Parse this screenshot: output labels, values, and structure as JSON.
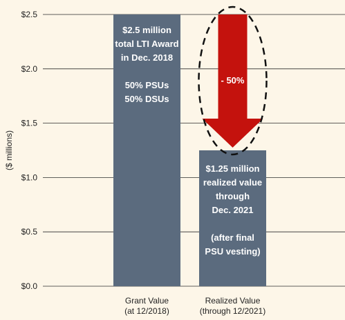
{
  "chart_data": {
    "type": "bar",
    "ylabel": "($ millions)",
    "ylim": [
      0,
      2.5
    ],
    "yticks": [
      0,
      0.5,
      1.0,
      1.5,
      2.0,
      2.5
    ],
    "ytick_labels": [
      "$0.0",
      "$0.5",
      "$1.0",
      "$1.5",
      "$2.0",
      "$2.5"
    ],
    "grid": true,
    "categories": [
      [
        "Grant Value",
        "(at 12/2018)"
      ],
      [
        "Realized Value",
        "(through 12/2021)"
      ]
    ],
    "values": [
      2.5,
      1.25
    ],
    "bar_color": "#5b6b7e",
    "bar_annotations": [
      [
        "$2.5 million",
        "total LTI Award",
        "in Dec. 2018",
        "",
        "50% PSUs",
        "50% DSUs"
      ],
      [
        "$1.25 million",
        "realized value",
        "through",
        "Dec. 2021",
        "",
        "(after final",
        "PSU vesting)"
      ]
    ],
    "change_annotation": {
      "label": "- 50%",
      "from": 2.5,
      "to": 1.25,
      "arrow_color": "#c4120d"
    }
  }
}
